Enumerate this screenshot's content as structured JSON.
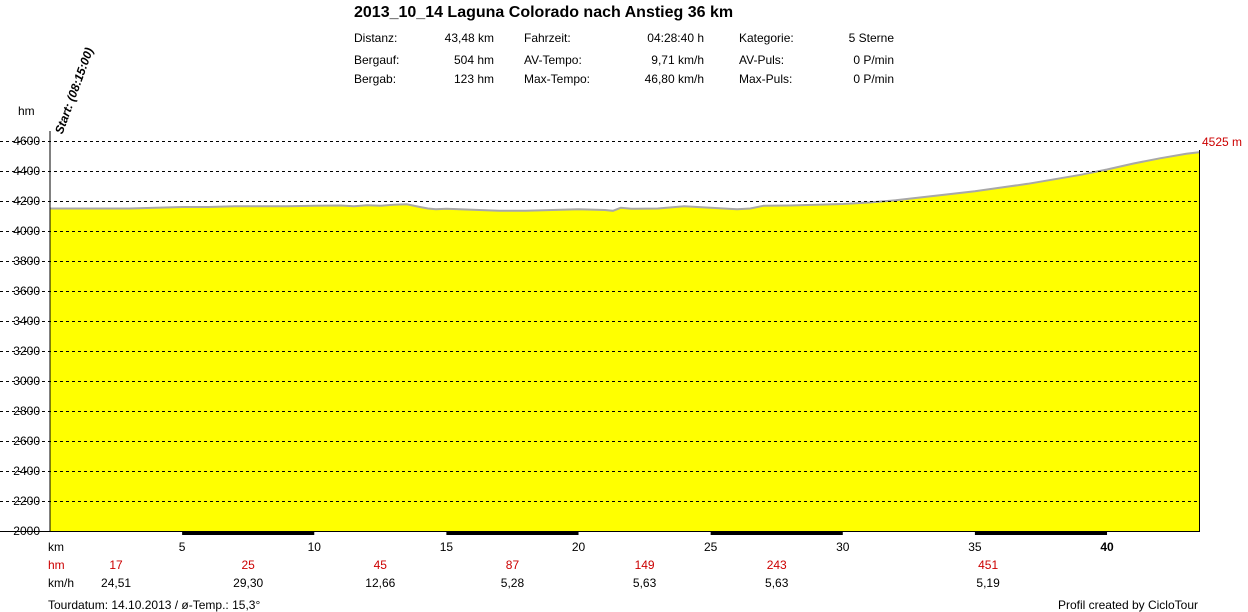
{
  "title": "2013_10_14 Laguna Colorado nach Anstieg 36 km",
  "stats": [
    {
      "label": "Distanz:",
      "value": "43,48 km"
    },
    {
      "label": "Bergauf:",
      "value": "504 hm"
    },
    {
      "label": "Bergab:",
      "value": "123 hm"
    },
    {
      "label": "Fahrzeit:",
      "value": "04:28:40 h"
    },
    {
      "label": "AV-Tempo:",
      "value": "9,71 km/h"
    },
    {
      "label": "Max-Tempo:",
      "value": "46,80 km/h"
    },
    {
      "label": "Kategorie:",
      "value": "5 Sterne"
    },
    {
      "label": "AV-Puls:",
      "value": "0 P/min"
    },
    {
      "label": "Max-Puls:",
      "value": "0 P/min"
    }
  ],
  "start_label": "Start: (08:15:00)",
  "max_label": "4525 m",
  "row_labels": {
    "km": "km",
    "hm": "hm",
    "kmh": "km/h"
  },
  "hm_values": [
    "17",
    "25",
    "45",
    "87",
    "149",
    "243",
    "451"
  ],
  "kmh_values": [
    "24,51",
    "29,30",
    "12,66",
    "5,28",
    "5,63",
    "5,63",
    "5,19"
  ],
  "footer_left": "Tourdatum: 14.10.2013  /  ø-Temp.: 15,3°",
  "footer_right": "Profil created by CicloTour",
  "colors": {
    "fill": "#ffff00",
    "line": "#a8a8a8",
    "accent": "#cc0000"
  },
  "chart_data": {
    "type": "area",
    "ylabel": "hm",
    "xlabel": "km",
    "ylim": [
      2000,
      4600
    ],
    "xlim": [
      0,
      43.48
    ],
    "yticks": [
      2000,
      2200,
      2400,
      2600,
      2800,
      3000,
      3200,
      3400,
      3600,
      3800,
      4000,
      4200,
      4400,
      4600
    ],
    "xticks": [
      5,
      10,
      15,
      20,
      25,
      30,
      35,
      40
    ],
    "grid": true,
    "x": [
      0,
      1,
      2,
      3,
      4,
      5,
      6,
      7,
      8,
      9,
      10,
      11,
      11.5,
      12,
      12.5,
      13,
      13.5,
      14,
      14.3,
      14.6,
      15,
      15.5,
      16,
      17,
      18,
      19,
      20,
      20.5,
      21,
      21.3,
      21.6,
      22,
      23,
      24,
      25,
      26,
      26.5,
      27,
      28,
      29,
      30,
      31,
      32,
      33,
      34,
      35,
      36,
      37,
      38,
      39,
      40,
      41,
      42,
      43,
      43.48
    ],
    "y": [
      4150,
      4150,
      4150,
      4150,
      4155,
      4160,
      4160,
      4165,
      4165,
      4165,
      4168,
      4170,
      4165,
      4172,
      4168,
      4175,
      4178,
      4160,
      4150,
      4145,
      4148,
      4145,
      4142,
      4135,
      4135,
      4140,
      4145,
      4143,
      4140,
      4135,
      4155,
      4148,
      4150,
      4165,
      4155,
      4145,
      4150,
      4168,
      4170,
      4175,
      4180,
      4190,
      4205,
      4225,
      4245,
      4265,
      4290,
      4315,
      4345,
      4375,
      4410,
      4450,
      4485,
      4515,
      4525
    ]
  }
}
